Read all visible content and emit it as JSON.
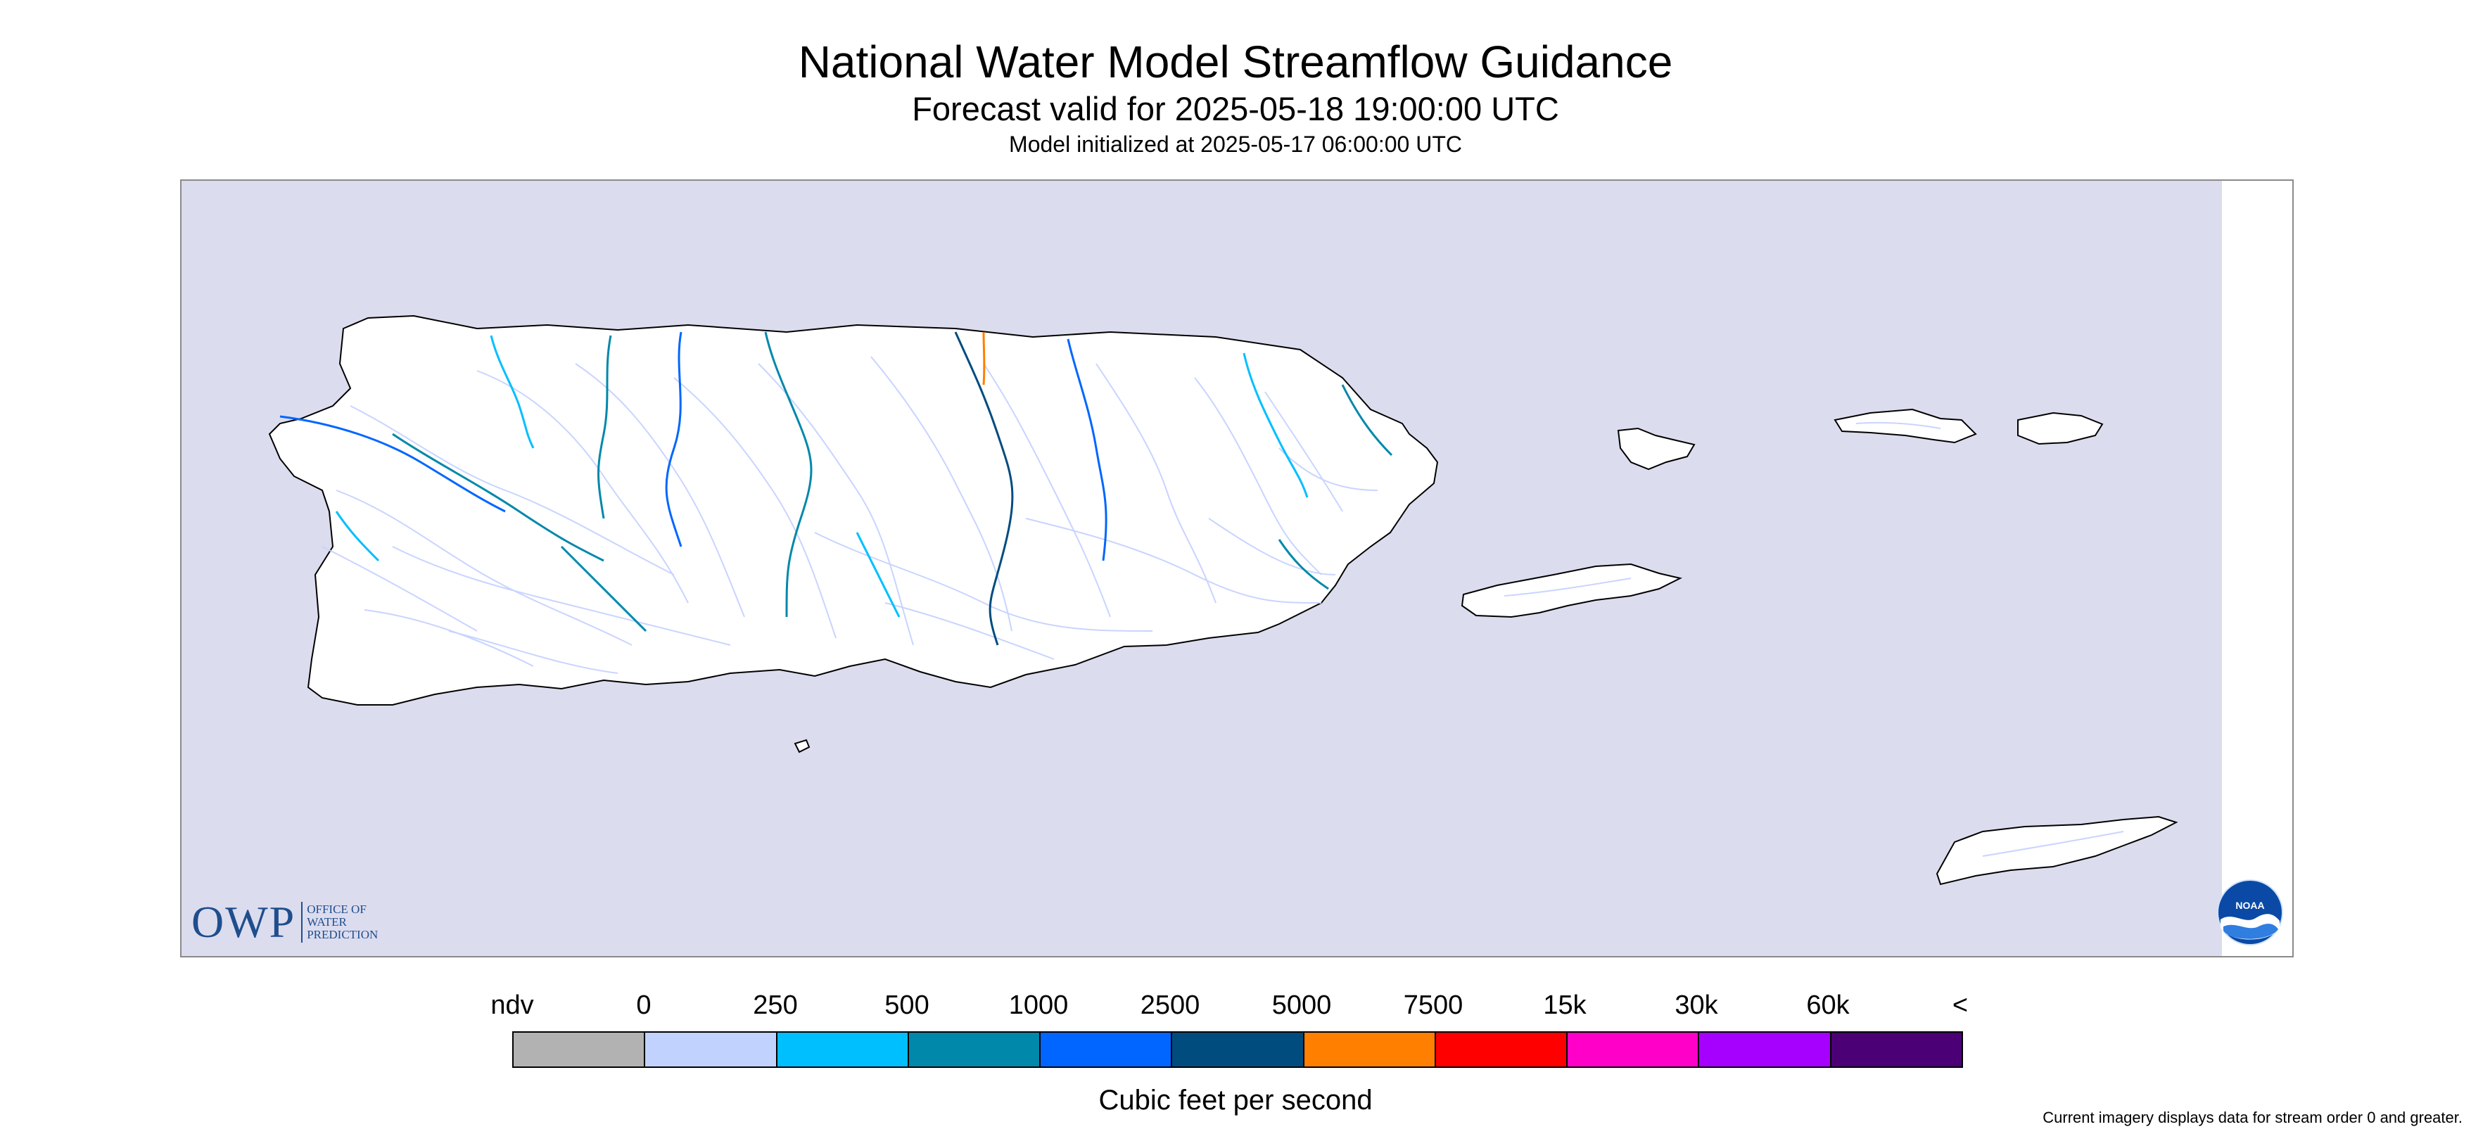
{
  "header": {
    "title": "National Water Model Streamflow Guidance",
    "subtitle": "Forecast valid for 2025-05-18 19:00:00 UTC",
    "initialized": "Model initialized at 2025-05-17 06:00:00 UTC"
  },
  "map": {
    "sea_color": "#dcdcef",
    "land_color": "#ffffff",
    "coastline_color": "#000000",
    "minor_stream_color": "#c7d2ff",
    "visible_flow_colors": [
      "#00bfff",
      "#0088aa",
      "#0066ff",
      "#004c7f",
      "#ff7f00"
    ]
  },
  "logos": {
    "owp": {
      "mark": "OWP",
      "words": [
        "OFFICE OF",
        "WATER",
        "PREDICTION"
      ]
    },
    "noaa": {
      "text": "NOAA"
    }
  },
  "legend": {
    "labels": [
      "ndv",
      "0",
      "250",
      "500",
      "1000",
      "2500",
      "5000",
      "7500",
      "15k",
      "30k",
      "60k",
      "<"
    ],
    "colors": [
      "#b2b2b2",
      "#c2d2ff",
      "#00bfff",
      "#0088aa",
      "#0066ff",
      "#004c7f",
      "#ff7f00",
      "#ff0000",
      "#ff00c8",
      "#a600ff",
      "#4b0075"
    ],
    "units": "Cubic feet per second"
  },
  "footnote": "Current imagery displays data for stream order 0 and greater."
}
